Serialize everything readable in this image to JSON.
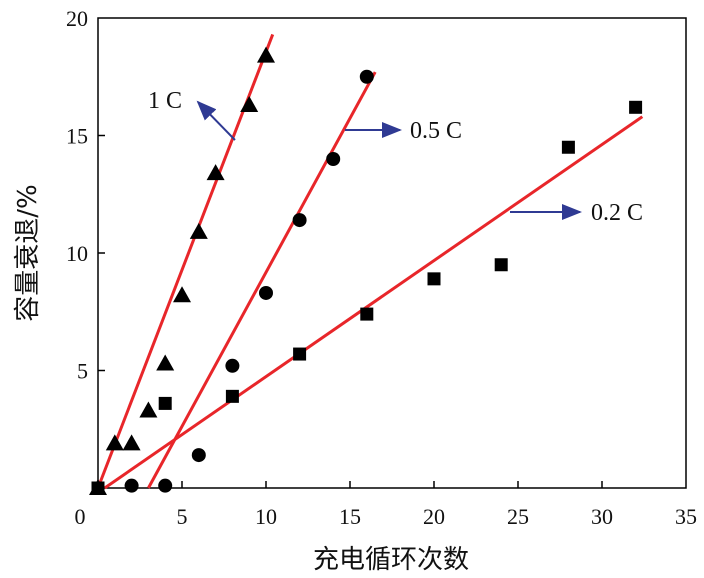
{
  "chart_data": {
    "type": "scatter",
    "title": "",
    "xlabel": "充电循环次数",
    "ylabel": "容量衰退/%",
    "xlim": [
      0,
      35
    ],
    "ylim": [
      0,
      20
    ],
    "xticks": [
      0,
      5,
      10,
      15,
      20,
      25,
      30,
      35
    ],
    "yticks": [
      5,
      10,
      15,
      20
    ],
    "grid": false,
    "series": [
      {
        "name": "1 C",
        "marker": "triangle",
        "x": [
          0,
          1,
          2,
          3,
          4,
          5,
          6,
          7,
          9,
          10
        ],
        "y": [
          0,
          1.9,
          1.9,
          3.3,
          5.3,
          8.2,
          10.9,
          13.4,
          16.3,
          18.4
        ],
        "fit": {
          "x": [
            0,
            10.4
          ],
          "y": [
            0,
            19.3
          ]
        }
      },
      {
        "name": "0.5 C",
        "marker": "circle",
        "x": [
          2,
          4,
          6,
          8,
          10,
          12,
          14,
          16
        ],
        "y": [
          0.1,
          0.1,
          1.4,
          5.2,
          8.3,
          11.4,
          14.0,
          17.5
        ],
        "fit": {
          "x": [
            3,
            16.5
          ],
          "y": [
            0,
            17.7
          ]
        }
      },
      {
        "name": "0.2 C",
        "marker": "square",
        "x": [
          0,
          4,
          8,
          12,
          16,
          20,
          24,
          28,
          32
        ],
        "y": [
          0,
          3.6,
          3.9,
          5.7,
          7.4,
          8.9,
          9.5,
          14.5,
          16.2
        ],
        "fit": {
          "x": [
            0.4,
            32.4
          ],
          "y": [
            0,
            15.8
          ]
        }
      }
    ],
    "annotations": [
      {
        "text": "1 C",
        "series": "1 C"
      },
      {
        "text": "0.5 C",
        "series": "0.5 C"
      },
      {
        "text": "0.2 C",
        "series": "0.2 C"
      }
    ],
    "colors": {
      "fit": "#e8262a",
      "arrow": "#2f3a93",
      "marker": "#000000"
    }
  }
}
